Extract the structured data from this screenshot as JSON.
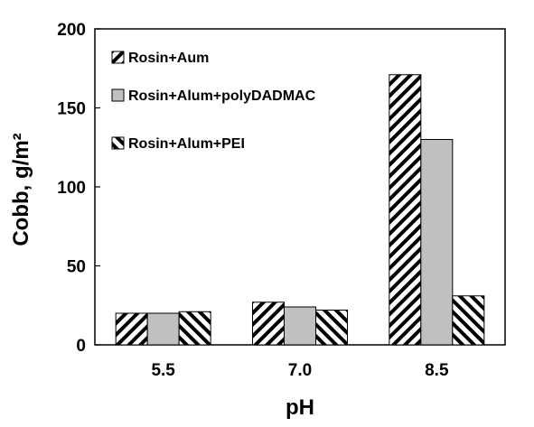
{
  "chart_data": {
    "type": "bar",
    "title": "",
    "xlabel": "pH",
    "ylabel": "Cobb, g/m²",
    "categories": [
      "5.5",
      "7.0",
      "8.5"
    ],
    "ylim": [
      0,
      200
    ],
    "yticks": [
      0,
      50,
      100,
      150,
      200
    ],
    "grid": false,
    "legend_position": "top-left",
    "series": [
      {
        "name": "Rosin+Aum",
        "values": [
          20,
          27,
          171
        ],
        "pattern": "diagonal-right",
        "color": "#ffffff"
      },
      {
        "name": "Rosin+Alum+polyDADMAC",
        "values": [
          20,
          24,
          130
        ],
        "pattern": "solid",
        "color": "#c0c0c0"
      },
      {
        "name": "Rosin+Alum+PEI",
        "values": [
          21,
          22,
          31
        ],
        "pattern": "diagonal-left",
        "color": "#ffffff"
      }
    ]
  }
}
